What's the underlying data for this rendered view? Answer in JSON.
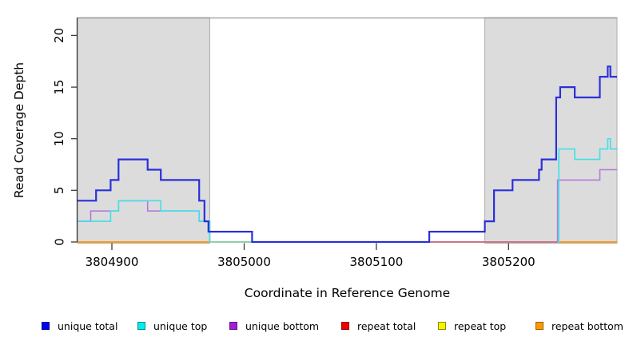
{
  "chart_data": {
    "type": "line",
    "subtype": "step",
    "title": "",
    "xlabel": "Coordinate in Reference Genome",
    "ylabel": "Read Coverage Depth",
    "xlim": [
      3804874,
      3805282
    ],
    "ylim": [
      0,
      21.7
    ],
    "x_ticks": [
      3804900,
      3805000,
      3805100,
      3805200
    ],
    "x_tick_labels": [
      "3804900",
      "3805000",
      "3805100",
      "3805200"
    ],
    "y_ticks": [
      0,
      5,
      10,
      15,
      20
    ],
    "y_tick_labels": [
      "0",
      "5",
      "10",
      "15",
      "20"
    ],
    "grid": false,
    "legend_position": "bottom",
    "shaded_regions": [
      {
        "name": "left-repeat-region",
        "x0": 3804874,
        "x1": 3804974,
        "fill": "#dcdcdc",
        "border": "#ababab"
      },
      {
        "name": "right-repeat-region",
        "x0": 3805182,
        "x1": 3805282,
        "fill": "#dcdcdc",
        "border": "#ababab"
      }
    ],
    "series": [
      {
        "name": "repeat total",
        "color": "#ee2222",
        "width": 1.4,
        "points": [
          [
            3804874,
            0
          ],
          [
            3805282,
            0
          ]
        ]
      },
      {
        "name": "repeat top",
        "color": "#f2f233",
        "width": 1.4,
        "points": [
          [
            3804874,
            0
          ],
          [
            3805282,
            0
          ]
        ]
      },
      {
        "name": "repeat bottom",
        "color": "#ff9a1e",
        "width": 2,
        "points": [
          [
            3804874,
            0
          ],
          [
            3805282,
            0
          ]
        ]
      },
      {
        "name": "unique bottom",
        "color": "#b478dc",
        "width": 1.6,
        "points": [
          [
            3804874,
            2
          ],
          [
            3804884,
            3
          ],
          [
            3804905,
            4
          ],
          [
            3804927,
            3
          ],
          [
            3804966,
            2
          ],
          [
            3804974,
            0
          ],
          [
            3805237,
            6
          ],
          [
            3805269,
            7
          ],
          [
            3805282,
            7
          ]
        ]
      },
      {
        "name": "unique top",
        "color": "#40e0e8",
        "width": 1.6,
        "points": [
          [
            3804874,
            2
          ],
          [
            3804899,
            3
          ],
          [
            3804905,
            4
          ],
          [
            3804937,
            3
          ],
          [
            3804966,
            2
          ],
          [
            3804974,
            0
          ],
          [
            3805238,
            9
          ],
          [
            3805250,
            8
          ],
          [
            3805269,
            9
          ],
          [
            3805275,
            10
          ],
          [
            3805277,
            9
          ],
          [
            3805282,
            9
          ]
        ]
      },
      {
        "name": "unique total",
        "color": "#2a30d9",
        "width": 2.2,
        "points": [
          [
            3804874,
            4
          ],
          [
            3804888,
            5
          ],
          [
            3804899,
            6
          ],
          [
            3804905,
            8
          ],
          [
            3804927,
            7
          ],
          [
            3804937,
            6
          ],
          [
            3804966,
            4
          ],
          [
            3804970,
            2
          ],
          [
            3804973,
            1
          ],
          [
            3805006,
            0
          ],
          [
            3805140,
            1
          ],
          [
            3805182,
            2
          ],
          [
            3805189,
            5
          ],
          [
            3805203,
            6
          ],
          [
            3805223,
            7
          ],
          [
            3805225,
            8
          ],
          [
            3805236,
            14
          ],
          [
            3805239,
            15
          ],
          [
            3805250,
            14
          ],
          [
            3805269,
            16
          ],
          [
            3805275,
            17
          ],
          [
            3805277,
            16
          ],
          [
            3805282,
            16
          ]
        ]
      }
    ],
    "baseline_overlay_segments": [
      {
        "x0": 3804974,
        "x1": 3805006,
        "color": "#8fd9a8",
        "width": 1.6
      },
      {
        "x0": 3805006,
        "x1": 3805140,
        "color": "#6a5ae0",
        "width": 1.8
      },
      {
        "x0": 3805140,
        "x1": 3805237,
        "color": "#e0607a",
        "width": 1.6
      }
    ]
  },
  "axes_style": {
    "line_color": "#3a3a3a",
    "top_border_color": "#9a9a9a"
  },
  "legend": {
    "items": [
      {
        "label": "unique total",
        "fill": "#0000ee",
        "border": "#000090"
      },
      {
        "label": "unique top",
        "fill": "#00eeee",
        "border": "#008b8b"
      },
      {
        "label": "unique bottom",
        "fill": "#a020d0",
        "border": "#6a0d90"
      },
      {
        "label": "repeat total",
        "fill": "#ee0000",
        "border": "#900000"
      },
      {
        "label": "repeat top",
        "fill": "#f5f500",
        "border": "#8b8b00"
      },
      {
        "label": "repeat bottom",
        "fill": "#ff9a00",
        "border": "#a06000"
      }
    ]
  }
}
